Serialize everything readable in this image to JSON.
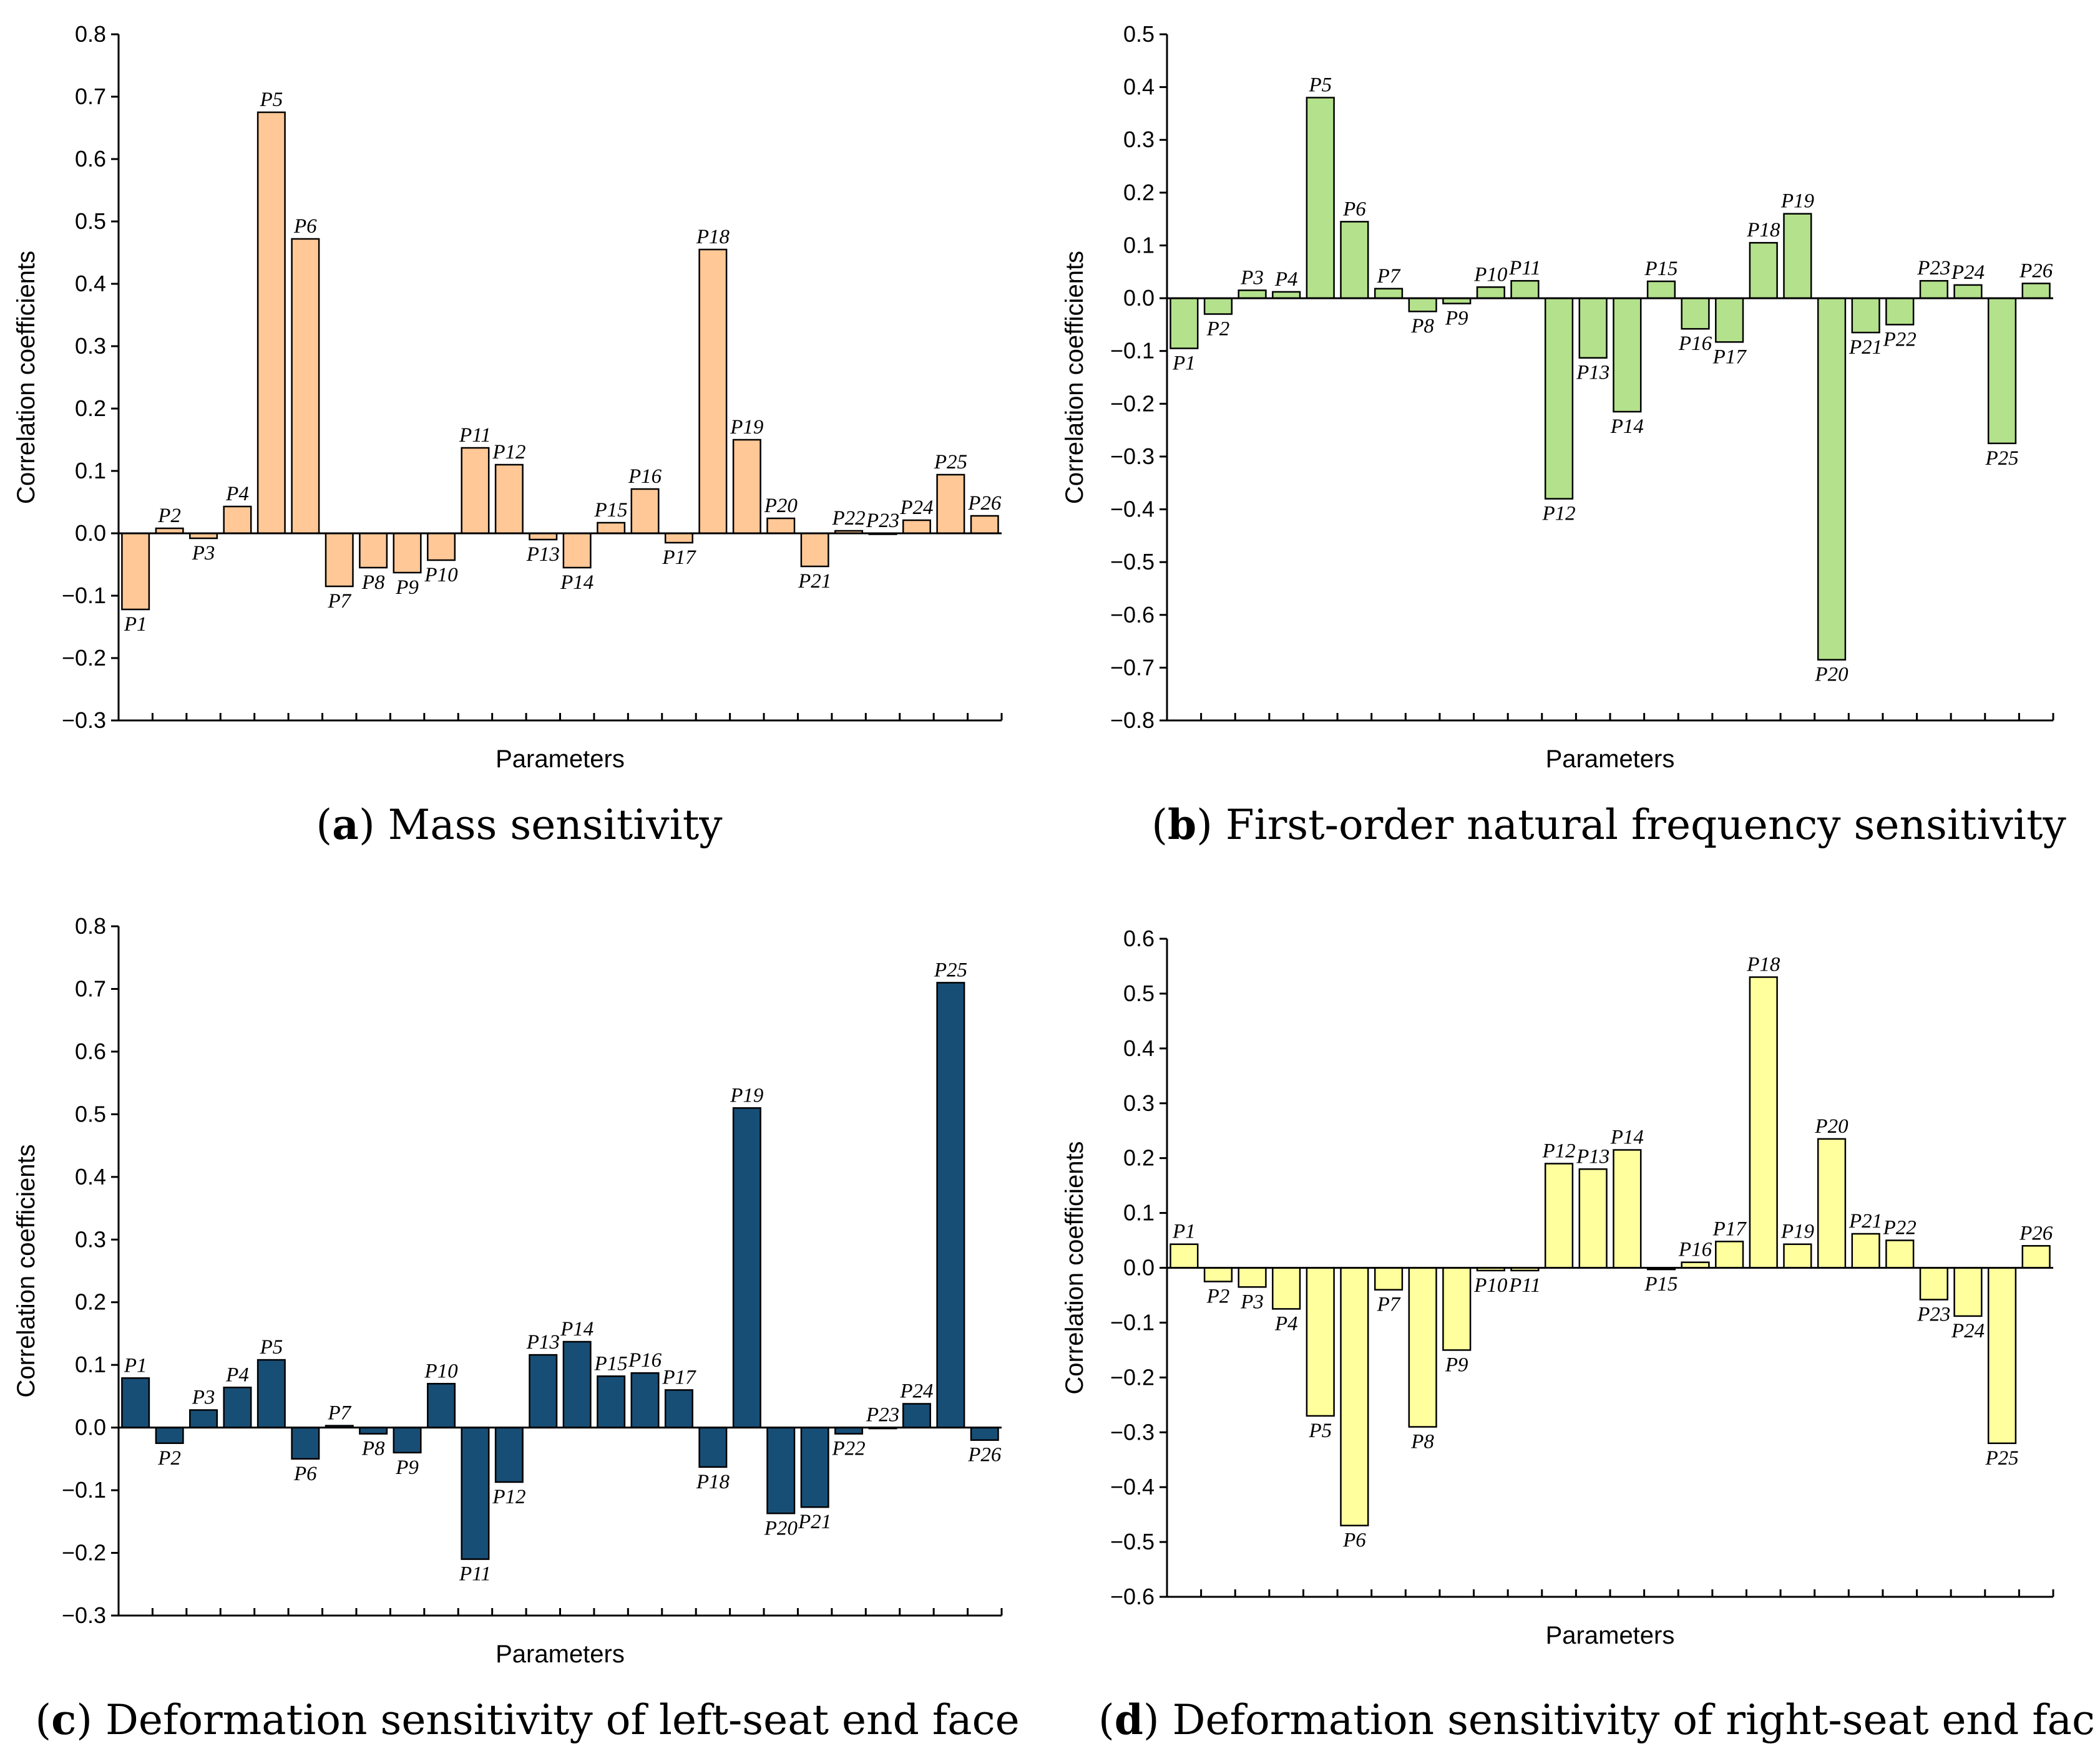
{
  "chart_data": [
    {
      "id": "a",
      "type": "bar",
      "caption_letter": "a",
      "caption_text": "Mass sensitivity",
      "title": "",
      "xlabel": "Parameters",
      "ylabel": "Correlation coefficients",
      "ylim": [
        -0.3,
        0.8
      ],
      "yticks": [
        -0.3,
        -0.2,
        -0.1,
        0.0,
        0.1,
        0.2,
        0.3,
        0.4,
        0.5,
        0.6,
        0.7,
        0.8
      ],
      "ytick_labels": [
        "−0.3",
        "−0.2",
        "−0.1",
        "0.0",
        "0.1",
        "0.2",
        "0.3",
        "0.4",
        "0.5",
        "0.6",
        "0.7",
        "0.8"
      ],
      "bar_color": "#FFC896",
      "categories": [
        "P1",
        "P2",
        "P3",
        "P4",
        "P5",
        "P6",
        "P7",
        "P8",
        "P9",
        "P10",
        "P11",
        "P12",
        "P13",
        "P14",
        "P15",
        "P16",
        "P17",
        "P18",
        "P19",
        "P20",
        "P21",
        "P22",
        "P23",
        "P24",
        "P25",
        "P26"
      ],
      "values": [
        -0.122,
        0.008,
        -0.008,
        0.043,
        0.675,
        0.472,
        -0.085,
        -0.055,
        -0.063,
        -0.043,
        0.137,
        0.11,
        -0.01,
        -0.055,
        0.017,
        0.071,
        -0.015,
        0.455,
        0.15,
        0.024,
        -0.053,
        0.004,
        0.0,
        0.021,
        0.094,
        0.028
      ]
    },
    {
      "id": "b",
      "type": "bar",
      "caption_letter": "b",
      "caption_text": "First-order natural frequency sensitivity",
      "title": "",
      "xlabel": "Parameters",
      "ylabel": "Correlation coefficients",
      "ylim": [
        -0.8,
        0.5
      ],
      "yticks": [
        -0.8,
        -0.7,
        -0.6,
        -0.5,
        -0.4,
        -0.3,
        -0.2,
        -0.1,
        0.0,
        0.1,
        0.2,
        0.3,
        0.4,
        0.5
      ],
      "ytick_labels": [
        "−0.8",
        "−0.7",
        "−0.6",
        "−0.5",
        "−0.4",
        "−0.3",
        "−0.2",
        "−0.1",
        "0.0",
        "0.1",
        "0.2",
        "0.3",
        "0.4",
        "0.5"
      ],
      "bar_color": "#B4E18C",
      "categories": [
        "P1",
        "P2",
        "P3",
        "P4",
        "P5",
        "P6",
        "P7",
        "P8",
        "P9",
        "P10",
        "P11",
        "P12",
        "P13",
        "P14",
        "P15",
        "P16",
        "P17",
        "P18",
        "P19",
        "P20",
        "P21",
        "P22",
        "P23",
        "P24",
        "P25",
        "P26"
      ],
      "values": [
        -0.095,
        -0.03,
        0.015,
        0.012,
        0.38,
        0.145,
        0.018,
        -0.025,
        -0.01,
        0.021,
        0.033,
        -0.38,
        -0.113,
        -0.215,
        0.032,
        -0.058,
        -0.083,
        0.105,
        0.16,
        -0.685,
        -0.065,
        -0.05,
        0.033,
        0.025,
        -0.275,
        0.028
      ]
    },
    {
      "id": "c",
      "type": "bar",
      "caption_letter": "c",
      "caption_text": "Deformation sensitivity of left-seat end face",
      "title": "",
      "xlabel": "Parameters",
      "ylabel": "Correlation coefficients",
      "ylim": [
        -0.3,
        0.8
      ],
      "yticks": [
        -0.3,
        -0.2,
        -0.1,
        0.0,
        0.1,
        0.2,
        0.3,
        0.4,
        0.5,
        0.6,
        0.7,
        0.8
      ],
      "ytick_labels": [
        "−0.3",
        "−0.2",
        "−0.1",
        "0.0",
        "0.1",
        "0.2",
        "0.3",
        "0.4",
        "0.5",
        "0.6",
        "0.7",
        "0.8"
      ],
      "bar_color": "#174E76",
      "categories": [
        "P1",
        "P2",
        "P3",
        "P4",
        "P5",
        "P6",
        "P7",
        "P8",
        "P9",
        "P10",
        "P11",
        "P12",
        "P13",
        "P14",
        "P15",
        "P16",
        "P17",
        "P18",
        "P19",
        "P20",
        "P21",
        "P22",
        "P23",
        "P24",
        "P25",
        "P26"
      ],
      "values": [
        0.079,
        -0.025,
        0.028,
        0.064,
        0.108,
        -0.05,
        0.003,
        -0.01,
        -0.04,
        0.07,
        -0.21,
        -0.087,
        0.116,
        0.137,
        0.082,
        0.087,
        0.06,
        -0.063,
        0.51,
        -0.137,
        -0.127,
        -0.01,
        0.0,
        0.038,
        0.71,
        -0.02
      ]
    },
    {
      "id": "d",
      "type": "bar",
      "caption_letter": "d",
      "caption_text": "Deformation sensitivity of right-seat end face",
      "title": "",
      "xlabel": "Parameters",
      "ylabel": "Correlation coefficients",
      "ylim": [
        -0.6,
        0.6
      ],
      "yticks": [
        -0.6,
        -0.5,
        -0.4,
        -0.3,
        -0.2,
        -0.1,
        0.0,
        0.1,
        0.2,
        0.3,
        0.4,
        0.5,
        0.6
      ],
      "ytick_labels": [
        "−0.6",
        "−0.5",
        "−0.4",
        "−0.3",
        "−0.2",
        "−0.1",
        "0.0",
        "0.1",
        "0.2",
        "0.3",
        "0.4",
        "0.5",
        "0.6"
      ],
      "bar_color": "#FFFF9E",
      "categories": [
        "P1",
        "P2",
        "P3",
        "P4",
        "P5",
        "P6",
        "P7",
        "P8",
        "P9",
        "P10",
        "P11",
        "P12",
        "P13",
        "P14",
        "P15",
        "P16",
        "P17",
        "P18",
        "P19",
        "P20",
        "P21",
        "P22",
        "P23",
        "P24",
        "P25",
        "P26"
      ],
      "values": [
        0.043,
        -0.025,
        -0.035,
        -0.075,
        -0.27,
        -0.47,
        -0.04,
        -0.29,
        -0.15,
        -0.005,
        -0.005,
        0.19,
        0.18,
        0.215,
        -0.003,
        0.01,
        0.048,
        0.53,
        0.043,
        0.235,
        0.062,
        0.05,
        -0.058,
        -0.088,
        -0.32,
        0.04
      ]
    }
  ]
}
